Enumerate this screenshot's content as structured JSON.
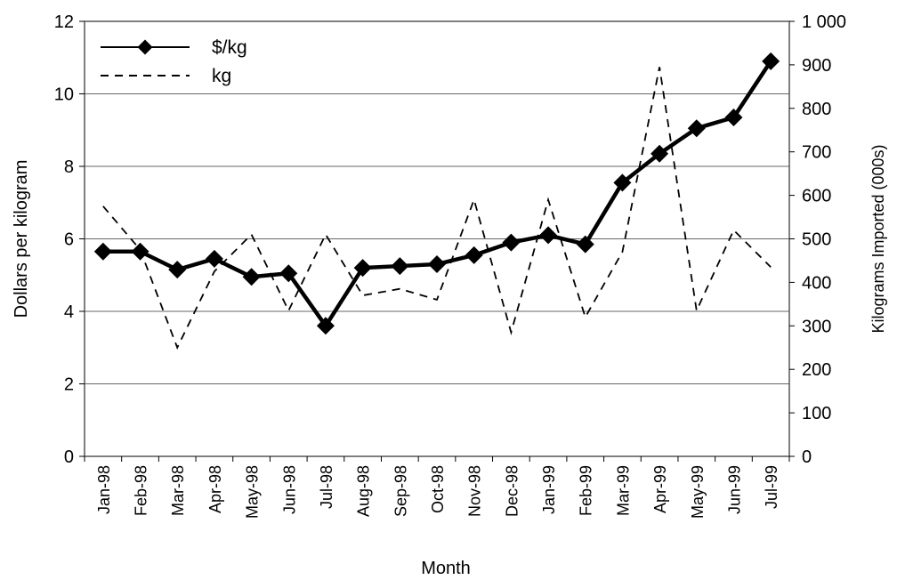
{
  "chart_data": {
    "type": "line",
    "categories": [
      "Jan-98",
      "Feb-98",
      "Mar-98",
      "Apr-98",
      "May-98",
      "Jun-98",
      "Jul-98",
      "Aug-98",
      "Sep-98",
      "Oct-98",
      "Nov-98",
      "Dec-98",
      "Jan-99",
      "Feb-99",
      "Mar-99",
      "Apr-99",
      "May-99",
      "Jun-99",
      "Jul-99"
    ],
    "series": [
      {
        "name": "$/kg",
        "axis": "left",
        "style": "solid-diamond",
        "values": [
          5.65,
          5.65,
          5.15,
          5.45,
          4.95,
          5.05,
          3.6,
          5.2,
          5.25,
          5.3,
          5.55,
          5.9,
          6.1,
          5.85,
          7.55,
          8.35,
          9.05,
          9.35,
          10.9
        ]
      },
      {
        "name": "kg",
        "axis": "right",
        "style": "dashed",
        "values": [
          575,
          475,
          250,
          425,
          510,
          335,
          510,
          370,
          385,
          360,
          590,
          285,
          590,
          320,
          470,
          895,
          335,
          520,
          435
        ]
      }
    ],
    "xlabel": "Month",
    "ylabel": "Dollars per kilogram",
    "y2label": "Kilograms Imported (000s)",
    "ylim": [
      0,
      12
    ],
    "y2lim": [
      0,
      1000
    ],
    "yticks": [
      "0",
      "2",
      "4",
      "6",
      "8",
      "10",
      "12"
    ],
    "y2ticks": [
      "0",
      "100",
      "200",
      "300",
      "400",
      "500",
      "600",
      "700",
      "800",
      "900",
      "1 000"
    ],
    "grid": true,
    "legend_position": "top-left"
  }
}
